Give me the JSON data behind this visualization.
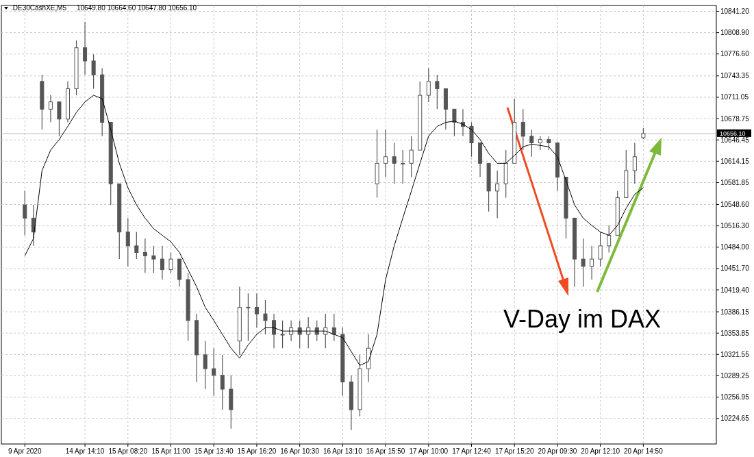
{
  "chart_data": {
    "type": "candlestick",
    "title": ".DE30CashXE,M5",
    "subtitle": "10649.80 10664.60 10647.80 10656.10",
    "categories": [
      "9 Apr 2020",
      null,
      null,
      null,
      null,
      null,
      null,
      "14 Apr 14:10",
      null,
      null,
      null,
      null,
      "15 Apr 08:20",
      null,
      null,
      null,
      null,
      "15 Apr 11:00",
      null,
      null,
      null,
      null,
      "15 Apr 13:40",
      null,
      null,
      null,
      null,
      "15 Apr 16:20",
      null,
      null,
      null,
      null,
      "16 Apr 10:30",
      null,
      null,
      null,
      null,
      "16 Apr 13:10",
      null,
      null,
      null,
      null,
      "16 Apr 15:50",
      null,
      null,
      null,
      null,
      "17 Apr 10:00",
      null,
      null,
      null,
      null,
      "17 Apr 12:40",
      null,
      null,
      null,
      null,
      "17 Apr 15:20",
      null,
      null,
      null,
      null,
      "20 Apr 09:30",
      null,
      null,
      null,
      null,
      "20 Apr 12:10",
      null,
      null,
      null,
      null,
      "20 Apr 14:50",
      null,
      null,
      null,
      null,
      null,
      null,
      null,
      null
    ],
    "series": [
      {
        "color": "#555555",
        "ohlc": [
          [
            10548,
            10569,
            10502,
            10528
          ],
          [
            10528,
            10548,
            10486,
            10507
          ],
          [
            10735,
            10745,
            10662,
            10693
          ],
          [
            10693,
            10714,
            10673,
            10704
          ],
          [
            10704,
            10704,
            10652,
            10678
          ],
          [
            10678,
            10735,
            10673,
            10724
          ],
          [
            10724,
            10797,
            10714,
            10786
          ],
          [
            10786,
            10825,
            10745,
            10766
          ],
          [
            10766,
            10776,
            10724,
            10745
          ],
          [
            10745,
            10755,
            10652,
            10673
          ],
          [
            10673,
            10673,
            10548,
            10580
          ],
          [
            10580,
            10580,
            10466,
            10507
          ],
          [
            10507,
            10528,
            10455,
            10486
          ],
          [
            10486,
            10507,
            10466,
            10476
          ],
          [
            10476,
            10497,
            10445,
            10471
          ],
          [
            10471,
            10486,
            10445,
            10466
          ],
          [
            10466,
            10486,
            10435,
            10450
          ],
          [
            10450,
            10476,
            10445,
            10466
          ],
          [
            10466,
            10466,
            10424,
            10435
          ],
          [
            10435,
            10445,
            10342,
            10373
          ],
          [
            10373,
            10383,
            10280,
            10321
          ],
          [
            10321,
            10342,
            10269,
            10300
          ],
          [
            10300,
            10331,
            10259,
            10290
          ],
          [
            10290,
            10321,
            10238,
            10269
          ],
          [
            10269,
            10290,
            10209,
            10238
          ],
          [
            10342,
            10424,
            10321,
            10393
          ],
          [
            10393,
            10414,
            10342,
            10393
          ],
          [
            10393,
            10414,
            10362,
            10383
          ],
          [
            10383,
            10404,
            10352,
            10373
          ],
          [
            10373,
            10383,
            10331,
            10352
          ],
          [
            10352,
            10373,
            10331,
            10352
          ],
          [
            10352,
            10373,
            10342,
            10362
          ],
          [
            10362,
            10373,
            10331,
            10352
          ],
          [
            10352,
            10378,
            10331,
            10362
          ],
          [
            10362,
            10373,
            10342,
            10352
          ],
          [
            10352,
            10383,
            10331,
            10362
          ],
          [
            10362,
            10383,
            10342,
            10352
          ],
          [
            10352,
            10362,
            10259,
            10280
          ],
          [
            10280,
            10290,
            10207,
            10238
          ],
          [
            10238,
            10321,
            10228,
            10300
          ],
          [
            10300,
            10352,
            10280,
            10331
          ],
          [
            10580,
            10662,
            10559,
            10611
          ],
          [
            10611,
            10662,
            10590,
            10621
          ],
          [
            10621,
            10642,
            10580,
            10611
          ],
          [
            10611,
            10631,
            10580,
            10611
          ],
          [
            10611,
            10652,
            10590,
            10631
          ],
          [
            10631,
            10735,
            10631,
            10714
          ],
          [
            10714,
            10755,
            10704,
            10735
          ],
          [
            10735,
            10745,
            10693,
            10724
          ],
          [
            10724,
            10724,
            10662,
            10693
          ],
          [
            10693,
            10693,
            10652,
            10673
          ],
          [
            10673,
            10693,
            10652,
            10667
          ],
          [
            10667,
            10673,
            10621,
            10642
          ],
          [
            10642,
            10642,
            10590,
            10611
          ],
          [
            10611,
            10611,
            10538,
            10569
          ],
          [
            10569,
            10600,
            10528,
            10580
          ],
          [
            10580,
            10631,
            10559,
            10611
          ],
          [
            10611,
            10709,
            10611,
            10673
          ],
          [
            10673,
            10693,
            10631,
            10652
          ],
          [
            10652,
            10662,
            10621,
            10642
          ],
          [
            10642,
            10652,
            10631,
            10647
          ],
          [
            10647,
            10652,
            10631,
            10642
          ],
          [
            10642,
            10642,
            10569,
            10590
          ],
          [
            10590,
            10590,
            10497,
            10528
          ],
          [
            10528,
            10528,
            10424,
            10466
          ],
          [
            10466,
            10497,
            10424,
            10455
          ],
          [
            10455,
            10486,
            10435,
            10466
          ],
          [
            10466,
            10507,
            10455,
            10486
          ],
          [
            10486,
            10517,
            10476,
            10502
          ],
          [
            10502,
            10569,
            10502,
            10559
          ],
          [
            10559,
            10631,
            10559,
            10600
          ],
          [
            10600,
            10642,
            10580,
            10621
          ],
          [
            10649.8,
            10664.6,
            10647.8,
            10656.1
          ],
          null,
          null,
          null,
          null,
          null,
          null,
          null,
          null
        ]
      },
      {
        "type": "line",
        "color": "#000000",
        "values": [
          10471,
          10497,
          10600,
          10631,
          10647,
          10667,
          10688,
          10704,
          10714,
          10709,
          10662,
          10611,
          10574,
          10548,
          10528,
          10512,
          10502,
          10492,
          10476,
          10450,
          10424,
          10393,
          10373,
          10352,
          10331,
          10316,
          10336,
          10352,
          10362,
          10362,
          10357,
          10357,
          10357,
          10357,
          10357,
          10357,
          10352,
          10347,
          10326,
          10305,
          10311,
          10352,
          10435,
          10486,
          10528,
          10569,
          10611,
          10652,
          10667,
          10673,
          10675,
          10670,
          10662,
          10647,
          10626,
          10611,
          10611,
          10623,
          10636,
          10640,
          10638,
          10636,
          10621,
          10585,
          10548,
          10528,
          10517,
          10507,
          10502,
          10517,
          10543,
          10564,
          10574,
          null,
          null,
          null,
          null,
          null,
          null,
          null,
          null
        ]
      }
    ],
    "ylim": [
      10186,
      10850
    ],
    "yticks": [
      10224.65,
      10256.95,
      10289.25,
      10321.55,
      10353.85,
      10386.15,
      {
        "value": 10419.4,
        "label": "10419.40"
      },
      {
        "value": 10451.7,
        "label": "10451.70"
      },
      {
        "value": 10484,
        "label": "10484.00"
      },
      {
        "value": 10516.3,
        "label": "10516.30"
      },
      {
        "value": 10548.6,
        "label": "10548.60"
      },
      10581.85,
      10614.15,
      10646.45,
      10678.75,
      10711.05,
      10743.35,
      {
        "value": 10776.6,
        "label": "10776.60"
      },
      {
        "value": 10808.9,
        "label": "10808.90"
      },
      {
        "value": 10841.2,
        "label": "10841.20"
      }
    ],
    "grid": true,
    "ref_lines": [
      {
        "axis": "y",
        "value": 10656.1,
        "label": "10656.10",
        "color": "#c0c0c0"
      }
    ],
    "annotations": [
      "V-Day im DAX"
    ]
  }
}
